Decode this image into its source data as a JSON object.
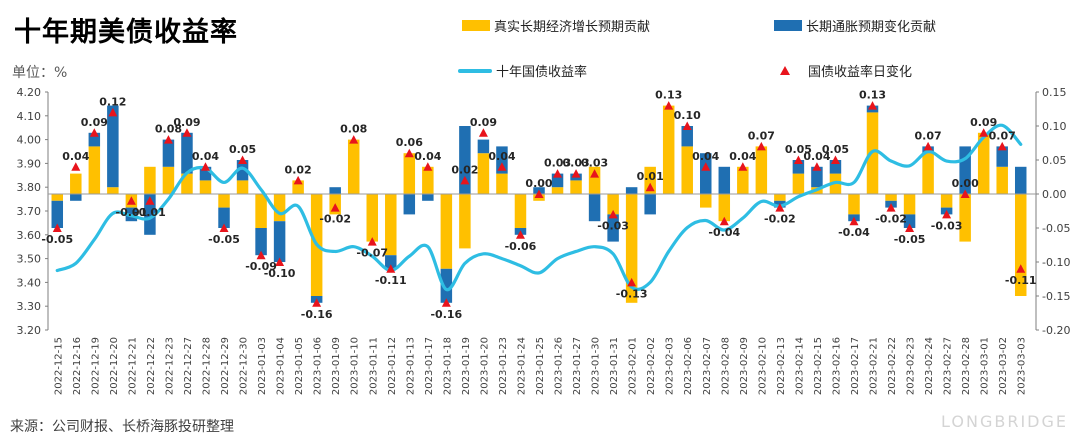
{
  "title": "十年期美债收益率",
  "unit_label": "单位：%",
  "source": "来源：公司财报、长桥海豚投研整理",
  "watermark": "LONGBRIDGE",
  "legend": {
    "real": "真实长期经济增长预期贡献",
    "infl": "长期通胀预期变化贡献",
    "line": "十年国债收益率",
    "marker": "国债收益率日变化"
  },
  "colors": {
    "real": "#ffc000",
    "infl": "#1f6fb2",
    "line": "#2ebde3",
    "marker": "#e8141c"
  },
  "chart_data": {
    "type": "bar",
    "categories": [
      "2022-12-15",
      "2022-12-16",
      "2022-12-19",
      "2022-12-20",
      "2022-12-21",
      "2022-12-22",
      "2022-12-23",
      "2022-12-27",
      "2022-12-28",
      "2022-12-29",
      "2022-12-30",
      "2023-01-03",
      "2023-01-04",
      "2023-01-05",
      "2023-01-06",
      "2023-01-09",
      "2023-01-10",
      "2023-01-11",
      "2023-01-12",
      "2023-01-13",
      "2023-01-17",
      "2023-01-18",
      "2023-01-19",
      "2023-01-20",
      "2023-01-23",
      "2023-01-24",
      "2023-01-25",
      "2023-01-26",
      "2023-01-27",
      "2023-01-30",
      "2023-01-31",
      "2023-02-01",
      "2023-02-02",
      "2023-02-03",
      "2023-02-06",
      "2023-02-07",
      "2023-02-08",
      "2023-02-09",
      "2023-02-10",
      "2023-02-13",
      "2023-02-14",
      "2023-02-15",
      "2023-02-16",
      "2023-02-17",
      "2023-02-21",
      "2023-02-22",
      "2023-02-23",
      "2023-02-24",
      "2023-02-27",
      "2023-02-28",
      "2023-03-01",
      "2023-03-02",
      "2023-03-03"
    ],
    "series": [
      {
        "name": "真实长期经济增长预期贡献",
        "axis": "right",
        "values": [
          -0.01,
          0.03,
          0.07,
          0.01,
          -0.02,
          0.04,
          0.04,
          0.03,
          0.02,
          -0.02,
          0.02,
          -0.05,
          -0.04,
          0.02,
          -0.15,
          -0.03,
          0.08,
          -0.07,
          -0.09,
          0.06,
          0.04,
          -0.11,
          -0.08,
          0.06,
          0.03,
          -0.05,
          -0.01,
          0.01,
          0.02,
          0.04,
          -0.03,
          -0.16,
          0.04,
          0.13,
          0.07,
          -0.02,
          -0.04,
          0.04,
          0.07,
          -0.01,
          0.03,
          0.01,
          0.03,
          -0.03,
          0.12,
          -0.01,
          -0.03,
          0.06,
          -0.02,
          -0.07,
          0.09,
          0.04,
          -0.15
        ]
      },
      {
        "name": "长期通胀预期变化贡献",
        "axis": "right",
        "values": [
          -0.04,
          -0.01,
          0.02,
          0.12,
          -0.02,
          -0.06,
          0.04,
          0.06,
          0.02,
          -0.03,
          0.03,
          -0.04,
          -0.06,
          0.0,
          -0.01,
          0.01,
          0.0,
          0.0,
          -0.02,
          -0.03,
          -0.01,
          -0.05,
          0.1,
          0.02,
          0.04,
          -0.01,
          0.01,
          0.02,
          0.01,
          -0.04,
          -0.04,
          0.01,
          -0.03,
          0.0,
          0.03,
          0.06,
          0.04,
          0.0,
          0.0,
          -0.01,
          0.02,
          0.03,
          0.02,
          -0.01,
          0.01,
          -0.01,
          -0.02,
          0.01,
          -0.01,
          0.07,
          0.0,
          0.03,
          0.04
        ]
      },
      {
        "name": "十年国债收益率",
        "axis": "left",
        "values": [
          3.45,
          3.48,
          3.58,
          3.69,
          3.68,
          3.67,
          3.75,
          3.86,
          3.88,
          3.82,
          3.88,
          3.79,
          3.69,
          3.72,
          3.56,
          3.53,
          3.55,
          3.51,
          3.45,
          3.51,
          3.55,
          3.37,
          3.48,
          3.52,
          3.5,
          3.47,
          3.44,
          3.5,
          3.53,
          3.55,
          3.52,
          3.38,
          3.4,
          3.53,
          3.63,
          3.66,
          3.62,
          3.67,
          3.74,
          3.72,
          3.76,
          3.79,
          3.82,
          3.82,
          3.95,
          3.91,
          3.89,
          3.95,
          3.91,
          3.92,
          4.01,
          4.06,
          3.98
        ]
      },
      {
        "name": "国债收益率日变化",
        "axis": "right",
        "values": [
          -0.05,
          0.04,
          0.09,
          0.12,
          -0.01,
          -0.01,
          0.08,
          0.09,
          0.04,
          -0.05,
          0.05,
          -0.09,
          -0.1,
          0.02,
          -0.16,
          -0.02,
          0.08,
          -0.07,
          -0.11,
          0.06,
          0.04,
          -0.16,
          0.02,
          0.09,
          0.04,
          -0.06,
          0.0,
          0.03,
          0.03,
          0.03,
          -0.03,
          -0.13,
          0.01,
          0.13,
          0.1,
          0.04,
          -0.04,
          0.04,
          0.07,
          -0.02,
          0.05,
          0.04,
          0.05,
          -0.04,
          0.13,
          -0.02,
          -0.05,
          0.07,
          -0.03,
          0.0,
          0.09,
          0.07,
          -0.11
        ]
      }
    ],
    "labels_shown": [
      -0.05,
      0.04,
      0.09,
      0.12,
      -0.01,
      -0.01,
      0.08,
      0.09,
      0.04,
      -0.05,
      0.05,
      -0.09,
      -0.1,
      0.02,
      -0.16,
      -0.02,
      0.08,
      -0.07,
      -0.11,
      0.06,
      0.04,
      -0.16,
      0.02,
      0.09,
      0.04,
      -0.06,
      0.0,
      0.03,
      0.03,
      0.03,
      -0.03,
      -0.13,
      0.01,
      0.13,
      0.1,
      0.04,
      -0.04,
      0.04,
      0.07,
      -0.02,
      0.05,
      0.04,
      0.05,
      -0.04,
      0.13,
      -0.02,
      -0.05,
      0.07,
      -0.03,
      0.0,
      0.09,
      0.07,
      -0.11
    ],
    "label_text": [
      "-0.05",
      "0.04",
      "0.09",
      "0.12",
      "-0.01",
      "-0.01",
      "0.08",
      "0.09",
      "0.04",
      "-0.05",
      "0.05",
      "-0.09",
      "-0.10",
      "0.02",
      "-0.16",
      "-0.02",
      "0.08",
      "-0.07",
      "-0.11",
      "0.06",
      "0.04",
      "-0.16",
      "0.02",
      "0.09",
      "0.04",
      "-0.06",
      "0.00",
      "0.03",
      "0.03",
      "0.03",
      "-0.03",
      "-0.13",
      "0.01",
      "0.13",
      "0.10",
      "0.04",
      "-0.04",
      "0.04",
      "0.07",
      "-0.02",
      "0.05",
      "0.04",
      "0.05",
      "-0.04",
      "0.13",
      "-0.02",
      "-0.05",
      "0.07",
      "-0.03",
      "0.00",
      "0.09",
      "0.07",
      "-0.11"
    ],
    "y_left": {
      "min": 3.2,
      "max": 4.2,
      "step": 0.1,
      "ticks": [
        "3.20",
        "3.30",
        "3.40",
        "3.50",
        "3.60",
        "3.70",
        "3.80",
        "3.90",
        "4.00",
        "4.10",
        "4.20"
      ]
    },
    "y_right": {
      "min": -0.2,
      "max": 0.15,
      "step": 0.05,
      "ticks": [
        "-0.20",
        "-0.15",
        "-0.10",
        "-0.05",
        "0.00",
        "0.05",
        "0.10",
        "0.15"
      ]
    },
    "grid": false,
    "legend_position": "top"
  }
}
